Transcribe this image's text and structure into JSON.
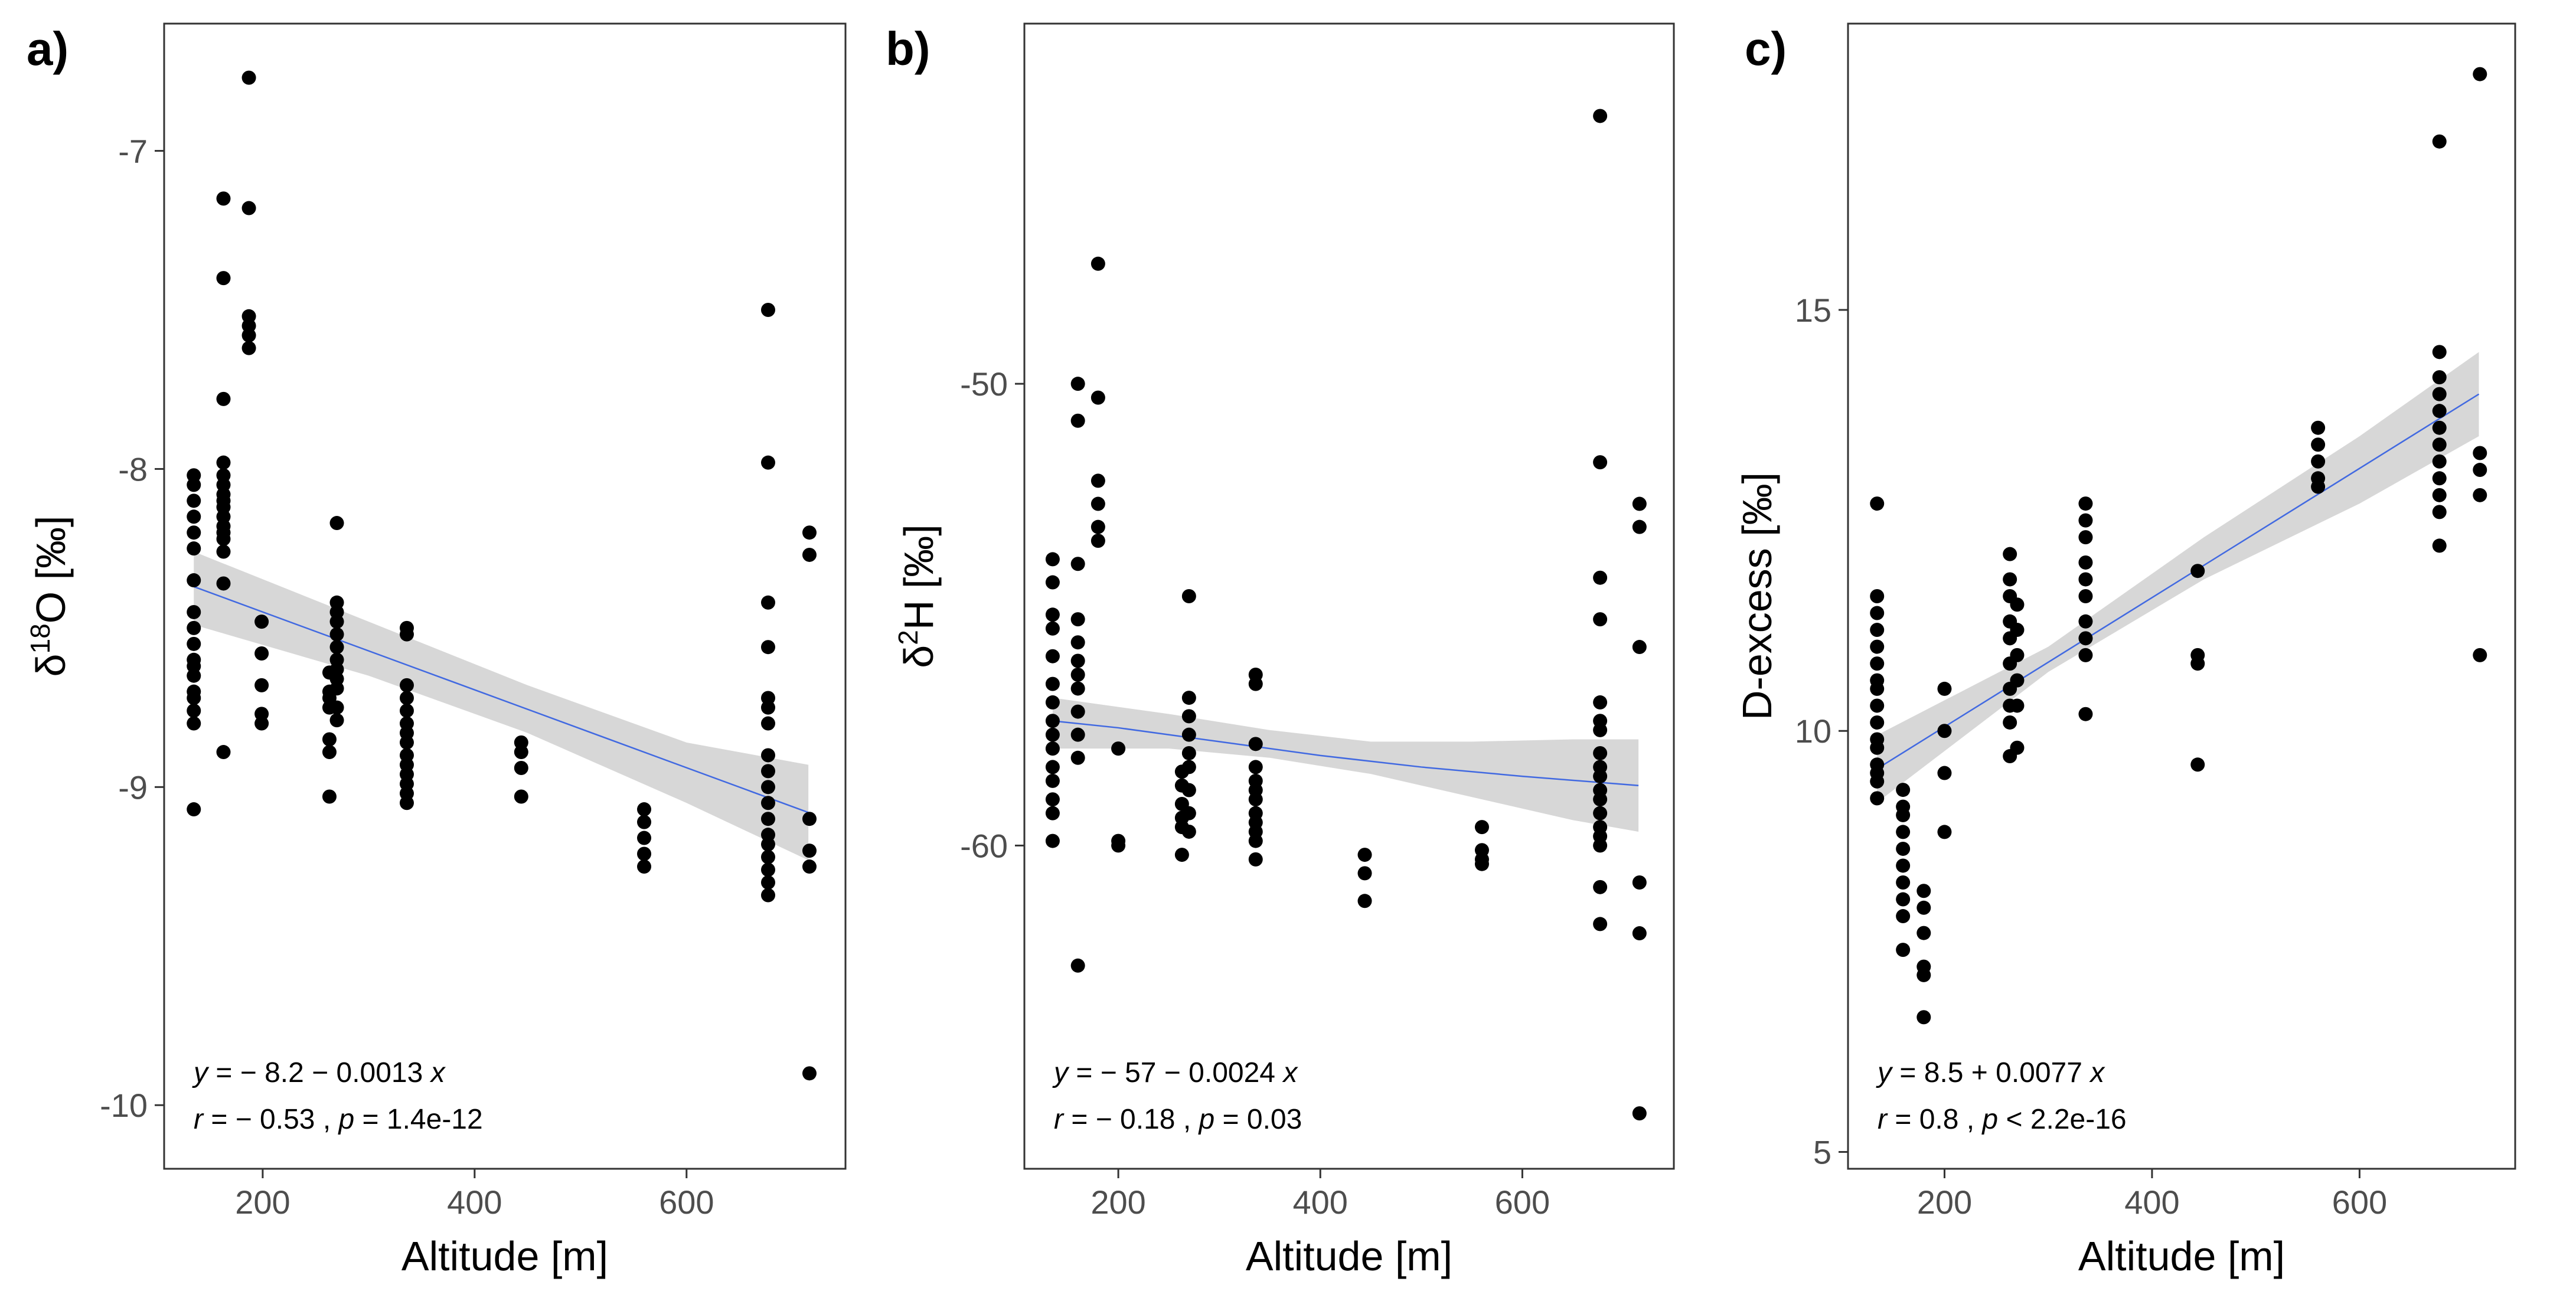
{
  "figure": {
    "point_color": "#000000",
    "fit_color": "#4169e1",
    "band_color": "#d3d3d3",
    "axis_color": "#333333"
  },
  "chart_data": [
    {
      "type": "scatter",
      "panel": "a)",
      "title": "",
      "xlabel": "Altitude [m]",
      "ylabel_pre": "δ",
      "ylabel_sup": "18",
      "ylabel_post": "O [‰]",
      "xlim": [
        107,
        750
      ],
      "ylim": [
        -10.2,
        -6.6
      ],
      "xticks": [
        200,
        400,
        600
      ],
      "yticks": [
        -10,
        -9,
        -8,
        -7
      ],
      "ytick_labels": [
        "-10",
        "-9",
        "-8",
        "-7"
      ],
      "fit": {
        "x": [
          135,
          715
        ],
        "y": [
          -8.37,
          -9.08
        ]
      },
      "ci": {
        "x": [
          135,
          300,
          450,
          600,
          715
        ],
        "upper": [
          -8.26,
          -8.48,
          -8.68,
          -8.86,
          -8.93
        ],
        "lower": [
          -8.49,
          -8.65,
          -8.83,
          -9.05,
          -9.23
        ]
      },
      "annotation": {
        "eq_y": "y",
        "eq_rest": " = − 8.2 − 0.0013 ",
        "eq_x": "x",
        "r_label": "r",
        "r_rest": " = − 0.53 , ",
        "p_label": "p",
        "p_rest": " = 1.4e-12"
      },
      "points": [
        [
          135,
          -8.02
        ],
        [
          135,
          -8.05
        ],
        [
          135,
          -8.1
        ],
        [
          135,
          -8.15
        ],
        [
          135,
          -8.2
        ],
        [
          135,
          -8.25
        ],
        [
          135,
          -8.35
        ],
        [
          135,
          -8.45
        ],
        [
          135,
          -8.5
        ],
        [
          135,
          -8.55
        ],
        [
          135,
          -8.6
        ],
        [
          135,
          -8.62
        ],
        [
          135,
          -8.65
        ],
        [
          135,
          -8.7
        ],
        [
          135,
          -8.72
        ],
        [
          135,
          -8.76
        ],
        [
          135,
          -8.8
        ],
        [
          135,
          -9.07
        ],
        [
          163,
          -7.15
        ],
        [
          163,
          -7.4
        ],
        [
          163,
          -7.78
        ],
        [
          163,
          -7.98
        ],
        [
          163,
          -8.02
        ],
        [
          163,
          -8.05
        ],
        [
          163,
          -8.08
        ],
        [
          163,
          -8.1
        ],
        [
          163,
          -8.12
        ],
        [
          163,
          -8.15
        ],
        [
          163,
          -8.18
        ],
        [
          163,
          -8.2
        ],
        [
          163,
          -8.22
        ],
        [
          163,
          -8.26
        ],
        [
          163,
          -8.36
        ],
        [
          163,
          -8.89
        ],
        [
          187,
          -6.77
        ],
        [
          187,
          -7.18
        ],
        [
          187,
          -7.52
        ],
        [
          187,
          -7.55
        ],
        [
          187,
          -7.58
        ],
        [
          187,
          -7.62
        ],
        [
          199,
          -8.48
        ],
        [
          199,
          -8.58
        ],
        [
          199,
          -8.68
        ],
        [
          199,
          -8.77
        ],
        [
          199,
          -8.8
        ],
        [
          263,
          -8.64
        ],
        [
          263,
          -8.7
        ],
        [
          263,
          -8.72
        ],
        [
          263,
          -8.75
        ],
        [
          263,
          -8.85
        ],
        [
          263,
          -8.89
        ],
        [
          263,
          -9.03
        ],
        [
          270,
          -8.17
        ],
        [
          270,
          -8.42
        ],
        [
          270,
          -8.45
        ],
        [
          270,
          -8.48
        ],
        [
          270,
          -8.52
        ],
        [
          270,
          -8.56
        ],
        [
          270,
          -8.6
        ],
        [
          270,
          -8.63
        ],
        [
          270,
          -8.66
        ],
        [
          270,
          -8.69
        ],
        [
          270,
          -8.75
        ],
        [
          270,
          -8.79
        ],
        [
          336,
          -8.5
        ],
        [
          336,
          -8.52
        ],
        [
          336,
          -8.68
        ],
        [
          336,
          -8.72
        ],
        [
          336,
          -8.76
        ],
        [
          336,
          -8.8
        ],
        [
          336,
          -8.83
        ],
        [
          336,
          -8.86
        ],
        [
          336,
          -8.9
        ],
        [
          336,
          -8.93
        ],
        [
          336,
          -8.96
        ],
        [
          336,
          -8.99
        ],
        [
          336,
          -9.02
        ],
        [
          336,
          -9.05
        ],
        [
          444,
          -8.86
        ],
        [
          444,
          -8.89
        ],
        [
          444,
          -8.94
        ],
        [
          444,
          -9.03
        ],
        [
          560,
          -9.07
        ],
        [
          560,
          -9.11
        ],
        [
          560,
          -9.16
        ],
        [
          560,
          -9.21
        ],
        [
          560,
          -9.25
        ],
        [
          677,
          -7.5
        ],
        [
          677,
          -7.98
        ],
        [
          677,
          -8.42
        ],
        [
          677,
          -8.56
        ],
        [
          677,
          -8.72
        ],
        [
          677,
          -8.75
        ],
        [
          677,
          -8.8
        ],
        [
          677,
          -8.9
        ],
        [
          677,
          -8.95
        ],
        [
          677,
          -9.0
        ],
        [
          677,
          -9.05
        ],
        [
          677,
          -9.1
        ],
        [
          677,
          -9.15
        ],
        [
          677,
          -9.18
        ],
        [
          677,
          -9.22
        ],
        [
          677,
          -9.26
        ],
        [
          677,
          -9.3
        ],
        [
          677,
          -9.34
        ],
        [
          716,
          -8.2
        ],
        [
          716,
          -8.27
        ],
        [
          716,
          -9.1
        ],
        [
          716,
          -9.2
        ],
        [
          716,
          -9.25
        ],
        [
          716,
          -9.9
        ]
      ]
    },
    {
      "type": "scatter",
      "panel": "b)",
      "title": "",
      "xlabel": "Altitude [m]",
      "ylabel_pre": "δ",
      "ylabel_sup": "2",
      "ylabel_post": "H [‰]",
      "xlim": [
        107,
        750
      ],
      "ylim": [
        -67,
        -42.2
      ],
      "xticks": [
        200,
        400,
        600
      ],
      "yticks": [
        -60,
        -50
      ],
      "ytick_labels": [
        "-60",
        "-50"
      ],
      "fit": {
        "x": [
          135,
          200,
          300,
          400,
          500,
          600,
          715
        ],
        "y": [
          -57.3,
          -57.45,
          -57.75,
          -58.05,
          -58.3,
          -58.5,
          -58.7
        ]
      },
      "ci": {
        "x": [
          135,
          250,
          350,
          450,
          550,
          650,
          715
        ],
        "upper": [
          -56.8,
          -57.15,
          -57.5,
          -57.75,
          -57.75,
          -57.7,
          -57.7
        ],
        "lower": [
          -57.9,
          -57.9,
          -58.1,
          -58.45,
          -58.95,
          -59.45,
          -59.7
        ]
      },
      "annotation": {
        "eq_y": "y",
        "eq_rest": " = − 57 − 0.0024 ",
        "eq_x": "x",
        "r_label": "r",
        "r_rest": " = − 0.18 , ",
        "p_label": "p",
        "p_rest": " = 0.03"
      },
      "points": [
        [
          135,
          -53.8
        ],
        [
          135,
          -54.3
        ],
        [
          135,
          -55.0
        ],
        [
          135,
          -55.3
        ],
        [
          135,
          -55.9
        ],
        [
          135,
          -56.5
        ],
        [
          135,
          -56.9
        ],
        [
          135,
          -57.3
        ],
        [
          135,
          -57.6
        ],
        [
          135,
          -57.9
        ],
        [
          135,
          -58.3
        ],
        [
          135,
          -58.6
        ],
        [
          135,
          -59.0
        ],
        [
          135,
          -59.3
        ],
        [
          135,
          -59.9
        ],
        [
          160,
          -50.0
        ],
        [
          160,
          -50.8
        ],
        [
          160,
          -53.9
        ],
        [
          160,
          -55.1
        ],
        [
          160,
          -55.6
        ],
        [
          160,
          -56.0
        ],
        [
          160,
          -56.3
        ],
        [
          160,
          -56.6
        ],
        [
          160,
          -57.1
        ],
        [
          160,
          -57.6
        ],
        [
          160,
          -58.1
        ],
        [
          160,
          -62.6
        ],
        [
          180,
          -47.4
        ],
        [
          180,
          -50.3
        ],
        [
          180,
          -52.1
        ],
        [
          180,
          -52.6
        ],
        [
          180,
          -53.1
        ],
        [
          180,
          -53.4
        ],
        [
          200,
          -57.9
        ],
        [
          200,
          -59.9
        ],
        [
          200,
          -60.0
        ],
        [
          263,
          -58.4
        ],
        [
          263,
          -58.7
        ],
        [
          263,
          -59.1
        ],
        [
          263,
          -59.4
        ],
        [
          263,
          -59.6
        ],
        [
          263,
          -60.2
        ],
        [
          270,
          -54.6
        ],
        [
          270,
          -56.8
        ],
        [
          270,
          -57.2
        ],
        [
          270,
          -57.6
        ],
        [
          270,
          -58.0
        ],
        [
          270,
          -58.3
        ],
        [
          270,
          -58.8
        ],
        [
          270,
          -59.3
        ],
        [
          270,
          -59.7
        ],
        [
          336,
          -56.3
        ],
        [
          336,
          -56.5
        ],
        [
          336,
          -57.8
        ],
        [
          336,
          -58.3
        ],
        [
          336,
          -58.6
        ],
        [
          336,
          -58.8
        ],
        [
          336,
          -59.0
        ],
        [
          336,
          -59.3
        ],
        [
          336,
          -59.5
        ],
        [
          336,
          -59.7
        ],
        [
          336,
          -59.9
        ],
        [
          336,
          -60.3
        ],
        [
          444,
          -60.2
        ],
        [
          444,
          -60.6
        ],
        [
          444,
          -61.2
        ],
        [
          560,
          -59.6
        ],
        [
          560,
          -60.1
        ],
        [
          560,
          -60.3
        ],
        [
          560,
          -60.4
        ],
        [
          677,
          -44.2
        ],
        [
          677,
          -51.7
        ],
        [
          677,
          -54.2
        ],
        [
          677,
          -55.1
        ],
        [
          677,
          -56.9
        ],
        [
          677,
          -57.3
        ],
        [
          677,
          -57.5
        ],
        [
          677,
          -58.0
        ],
        [
          677,
          -58.3
        ],
        [
          677,
          -58.5
        ],
        [
          677,
          -58.8
        ],
        [
          677,
          -59.0
        ],
        [
          677,
          -59.3
        ],
        [
          677,
          -59.6
        ],
        [
          677,
          -59.8
        ],
        [
          677,
          -60.0
        ],
        [
          677,
          -60.9
        ],
        [
          677,
          -61.7
        ],
        [
          716,
          -52.6
        ],
        [
          716,
          -53.1
        ],
        [
          716,
          -55.7
        ],
        [
          716,
          -60.8
        ],
        [
          716,
          -61.9
        ],
        [
          716,
          -65.8
        ]
      ]
    },
    {
      "type": "scatter",
      "panel": "c)",
      "title": "",
      "xlabel": "Altitude [m]",
      "ylabel_pre": "D-excess [‰]",
      "ylabel_sup": "",
      "ylabel_post": "",
      "xlim": [
        107,
        750
      ],
      "ylim": [
        4.8,
        18.4
      ],
      "xticks": [
        200,
        400,
        600
      ],
      "yticks": [
        5,
        10,
        15
      ],
      "ytick_labels": [
        "5",
        "10",
        "15"
      ],
      "fit": {
        "x": [
          135,
          715
        ],
        "y": [
          9.55,
          14.0
        ]
      },
      "ci": {
        "x": [
          135,
          300,
          450,
          600,
          715
        ],
        "upper": [
          9.95,
          11.0,
          12.3,
          13.5,
          14.5
        ],
        "lower": [
          9.15,
          10.7,
          11.8,
          12.7,
          13.5
        ]
      },
      "annotation": {
        "eq_y": "y",
        "eq_rest": " = 8.5 + 0.0077 ",
        "eq_x": "x",
        "r_label": "r",
        "r_rest": " = 0.8 , ",
        "p_label": "p",
        "p_rest": " < 2.2e-16"
      },
      "points": [
        [
          135,
          12.7
        ],
        [
          135,
          11.6
        ],
        [
          135,
          11.4
        ],
        [
          135,
          11.2
        ],
        [
          135,
          11.0
        ],
        [
          135,
          10.8
        ],
        [
          135,
          10.6
        ],
        [
          135,
          10.5
        ],
        [
          135,
          10.3
        ],
        [
          135,
          10.1
        ],
        [
          135,
          9.9
        ],
        [
          135,
          9.8
        ],
        [
          135,
          9.6
        ],
        [
          135,
          9.5
        ],
        [
          135,
          9.4
        ],
        [
          135,
          9.2
        ],
        [
          160,
          9.3
        ],
        [
          160,
          9.1
        ],
        [
          160,
          9.0
        ],
        [
          160,
          8.8
        ],
        [
          160,
          8.6
        ],
        [
          160,
          8.4
        ],
        [
          160,
          8.2
        ],
        [
          160,
          8.0
        ],
        [
          160,
          7.8
        ],
        [
          160,
          7.4
        ],
        [
          180,
          8.1
        ],
        [
          180,
          7.9
        ],
        [
          180,
          7.6
        ],
        [
          180,
          7.2
        ],
        [
          180,
          7.1
        ],
        [
          180,
          6.6
        ],
        [
          200,
          10.5
        ],
        [
          200,
          10.0
        ],
        [
          200,
          9.5
        ],
        [
          200,
          8.8
        ],
        [
          263,
          12.1
        ],
        [
          263,
          11.8
        ],
        [
          263,
          11.6
        ],
        [
          263,
          11.3
        ],
        [
          263,
          11.1
        ],
        [
          263,
          10.8
        ],
        [
          263,
          10.5
        ],
        [
          263,
          10.3
        ],
        [
          263,
          10.1
        ],
        [
          263,
          9.7
        ],
        [
          270,
          11.5
        ],
        [
          270,
          11.2
        ],
        [
          270,
          10.9
        ],
        [
          270,
          10.6
        ],
        [
          270,
          10.3
        ],
        [
          270,
          9.8
        ],
        [
          336,
          12.7
        ],
        [
          336,
          12.5
        ],
        [
          336,
          12.3
        ],
        [
          336,
          12.0
        ],
        [
          336,
          11.8
        ],
        [
          336,
          11.6
        ],
        [
          336,
          11.3
        ],
        [
          336,
          11.1
        ],
        [
          336,
          10.9
        ],
        [
          336,
          10.2
        ],
        [
          444,
          11.9
        ],
        [
          444,
          10.9
        ],
        [
          444,
          10.8
        ],
        [
          444,
          9.6
        ],
        [
          560,
          13.6
        ],
        [
          560,
          13.4
        ],
        [
          560,
          13.2
        ],
        [
          560,
          13.0
        ],
        [
          560,
          12.9
        ],
        [
          677,
          17.0
        ],
        [
          677,
          14.5
        ],
        [
          677,
          14.2
        ],
        [
          677,
          14.0
        ],
        [
          677,
          13.8
        ],
        [
          677,
          13.6
        ],
        [
          677,
          13.4
        ],
        [
          677,
          13.2
        ],
        [
          677,
          13.0
        ],
        [
          677,
          12.8
        ],
        [
          677,
          12.6
        ],
        [
          677,
          12.2
        ],
        [
          716,
          17.8
        ],
        [
          716,
          13.3
        ],
        [
          716,
          13.1
        ],
        [
          716,
          12.8
        ],
        [
          716,
          10.9
        ]
      ]
    }
  ]
}
